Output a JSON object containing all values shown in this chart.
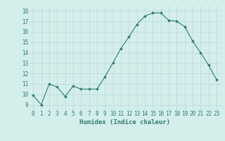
{
  "x": [
    0,
    1,
    2,
    3,
    4,
    5,
    6,
    7,
    8,
    9,
    10,
    11,
    12,
    13,
    14,
    15,
    16,
    17,
    18,
    19,
    20,
    21,
    22,
    23
  ],
  "y": [
    9.9,
    9.0,
    11.0,
    10.7,
    9.8,
    10.8,
    10.5,
    10.5,
    10.5,
    11.7,
    13.0,
    14.4,
    15.5,
    16.7,
    17.5,
    17.8,
    17.8,
    17.1,
    17.0,
    16.5,
    15.1,
    14.0,
    12.8,
    11.4
  ],
  "line_color": "#2e7d6e",
  "marker": "D",
  "marker_size": 1.8,
  "bg_color": "#d4eeec",
  "grid_color": "#b8d8d6",
  "xlabel": "Humidex (Indice chaleur)",
  "ylabel_ticks": [
    9,
    10,
    11,
    12,
    13,
    14,
    15,
    16,
    17,
    18
  ],
  "ylim": [
    8.5,
    18.5
  ],
  "xlim": [
    -0.5,
    23.5
  ],
  "xtick_labels": [
    "0",
    "1",
    "2",
    "3",
    "4",
    "5",
    "6",
    "7",
    "8",
    "9",
    "10",
    "11",
    "12",
    "13",
    "14",
    "15",
    "16",
    "17",
    "18",
    "19",
    "20",
    "21",
    "22",
    "23"
  ],
  "xlabel_fontsize": 6.5,
  "tick_fontsize": 5.5,
  "line_width": 0.8
}
